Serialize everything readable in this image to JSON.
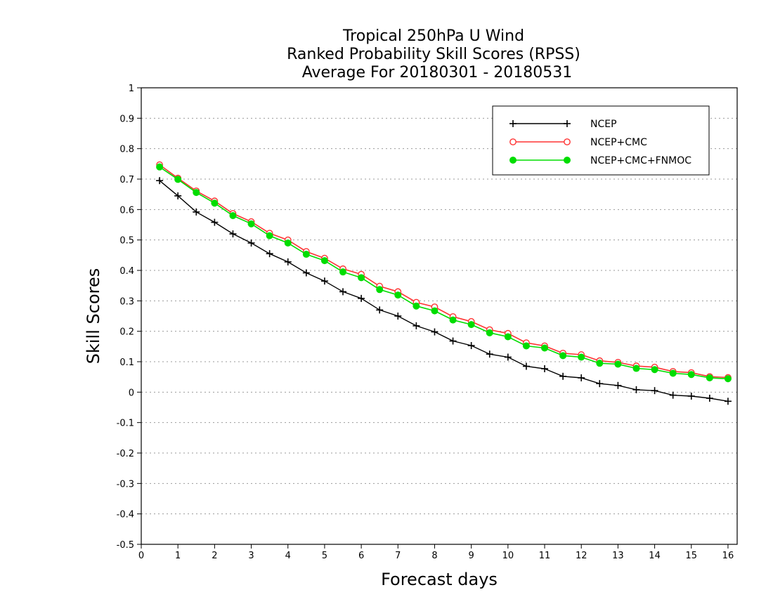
{
  "chart_data": {
    "type": "line",
    "title": [
      "Tropical 250hPa U Wind",
      "Ranked Probability Skill Scores (RPSS)",
      "Average For 20180301 - 20180531"
    ],
    "xlabel": "Forecast days",
    "ylabel": "Skill Scores",
    "xlim": [
      0,
      16.25
    ],
    "ylim": [
      -0.5,
      1
    ],
    "x_ticks": [
      0,
      1,
      2,
      3,
      4,
      5,
      6,
      7,
      8,
      9,
      10,
      11,
      12,
      13,
      14,
      15,
      16
    ],
    "x_tick_labels": [
      "0",
      "1",
      "2",
      "3",
      "4",
      "5",
      "6",
      "7",
      "8",
      "9",
      "10",
      "11",
      "12",
      "13",
      "14",
      "15",
      "16"
    ],
    "y_ticks": [
      -0.5,
      -0.4,
      -0.3,
      -0.2,
      -0.1,
      0,
      0.1,
      0.2,
      0.3,
      0.4,
      0.5,
      0.6,
      0.7,
      0.8,
      0.9,
      1
    ],
    "y_tick_labels": [
      "-0.5",
      "-0.4",
      "-0.3",
      "-0.2",
      "-0.1",
      "0",
      "0.1",
      "0.2",
      "0.3",
      "0.4",
      "0.5",
      "0.6",
      "0.7",
      "0.8",
      "0.9",
      "1"
    ],
    "grid": "horizontal dotted",
    "legend_position": "top-right",
    "x": [
      0.5,
      1,
      1.5,
      2,
      2.5,
      3,
      3.5,
      4,
      4.5,
      5,
      5.5,
      6,
      6.5,
      7,
      7.5,
      8,
      8.5,
      9,
      9.5,
      10,
      10.5,
      11,
      11.5,
      12,
      12.5,
      13,
      13.5,
      14,
      14.5,
      15,
      15.5,
      16
    ],
    "series": [
      {
        "name": "NCEP",
        "color": "#000000",
        "marker": "plus",
        "values": [
          0.695,
          0.645,
          0.592,
          0.558,
          0.52,
          0.49,
          0.455,
          0.428,
          0.392,
          0.365,
          0.33,
          0.308,
          0.27,
          0.25,
          0.218,
          0.198,
          0.168,
          0.153,
          0.125,
          0.115,
          0.085,
          0.077,
          0.052,
          0.047,
          0.028,
          0.022,
          0.008,
          0.005,
          -0.01,
          -0.013,
          -0.02,
          -0.03
        ]
      },
      {
        "name": "NCEP+CMC",
        "color": "#ff3333",
        "marker": "open-circle",
        "values": [
          0.747,
          0.703,
          0.661,
          0.628,
          0.587,
          0.56,
          0.522,
          0.5,
          0.462,
          0.44,
          0.405,
          0.387,
          0.348,
          0.33,
          0.295,
          0.28,
          0.248,
          0.232,
          0.205,
          0.193,
          0.162,
          0.152,
          0.128,
          0.123,
          0.103,
          0.098,
          0.086,
          0.082,
          0.068,
          0.064,
          0.051,
          0.048
        ]
      },
      {
        "name": "NCEP+CMC+FNMOC",
        "color": "#00dd00",
        "marker": "filled-circle",
        "values": [
          0.74,
          0.699,
          0.656,
          0.621,
          0.58,
          0.553,
          0.514,
          0.49,
          0.453,
          0.432,
          0.395,
          0.376,
          0.337,
          0.319,
          0.283,
          0.267,
          0.237,
          0.222,
          0.195,
          0.182,
          0.152,
          0.145,
          0.12,
          0.115,
          0.095,
          0.092,
          0.078,
          0.074,
          0.062,
          0.058,
          0.047,
          0.044
        ]
      }
    ]
  }
}
